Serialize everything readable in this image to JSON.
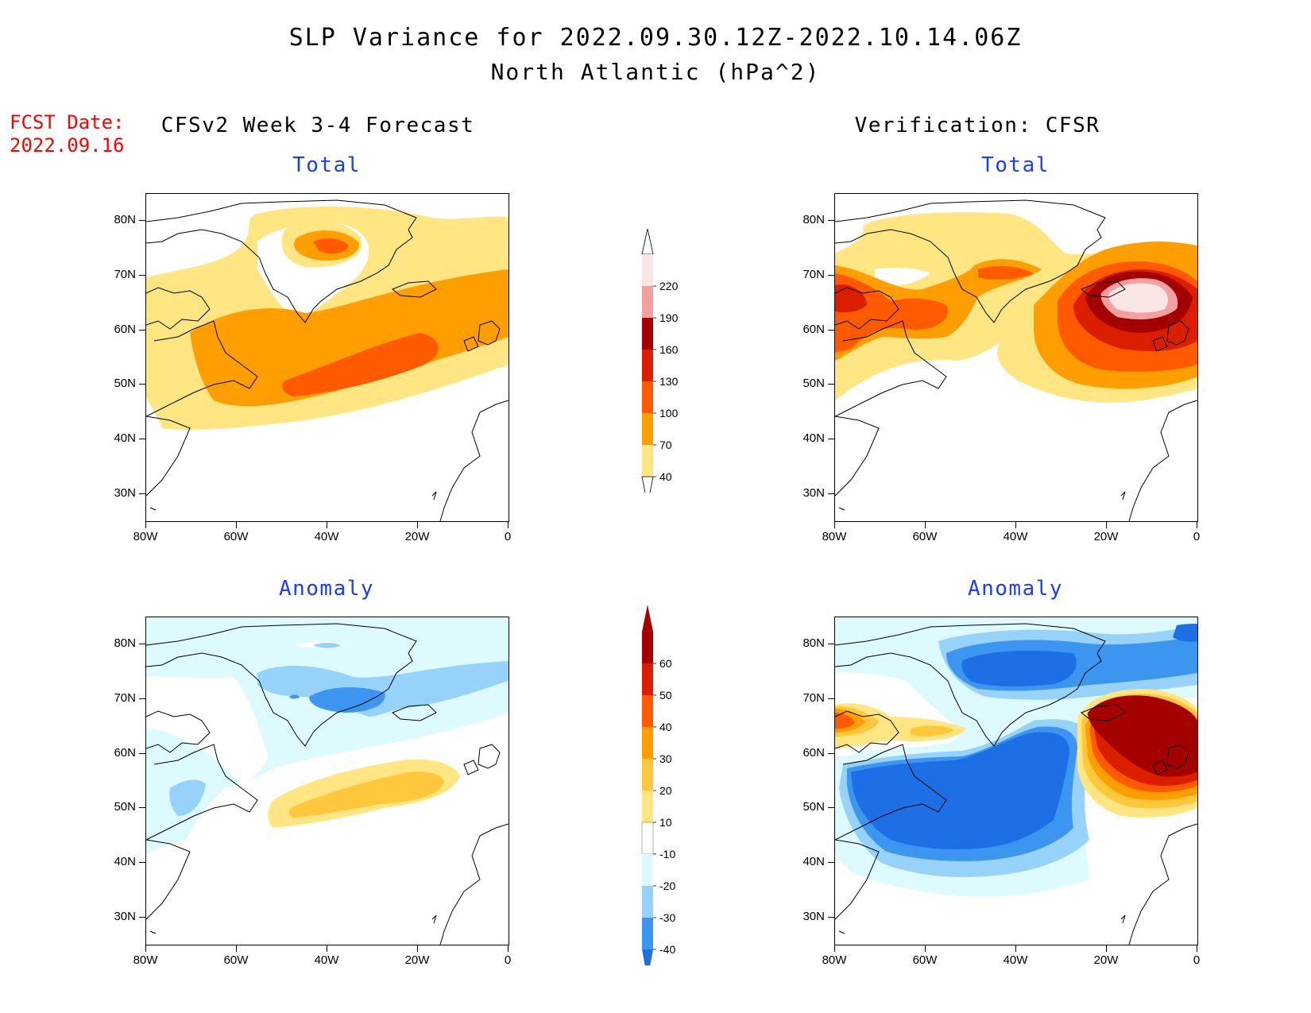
{
  "header": {
    "title": "SLP Variance for 2022.09.30.12Z-2022.10.14.06Z",
    "subtitle": "North Atlantic (hPa^2)"
  },
  "fcst": {
    "label": "FCST Date:",
    "date": "2022.09.16"
  },
  "columns": {
    "left": "CFSv2 Week 3-4 Forecast",
    "right": "Verification: CFSR"
  },
  "panel_titles": {
    "forecast_total": "Total",
    "verif_total": "Total",
    "forecast_anomaly": "Anomaly",
    "verif_anomaly": "Anomaly"
  },
  "axes": {
    "lat_labels": [
      "80N",
      "70N",
      "60N",
      "50N",
      "40N",
      "30N"
    ],
    "lon_labels": [
      "80W",
      "60W",
      "40W",
      "20W",
      "0"
    ]
  },
  "colorbars": {
    "total": {
      "labels": [
        "220",
        "190",
        "160",
        "130",
        "100",
        "70",
        "40"
      ],
      "colors": [
        "#fbe6e6",
        "#f2a0a0",
        "#a50000",
        "#dc1e00",
        "#ff5a00",
        "#ff9e00",
        "#ffe682"
      ]
    },
    "anomaly": {
      "labels": [
        "60",
        "50",
        "40",
        "30",
        "20",
        "10",
        "-10",
        "-20",
        "-30",
        "-40"
      ],
      "colors": [
        "#a50000",
        "#dc1e00",
        "#ff5a00",
        "#ff9e00",
        "#ffc83c",
        "#ffe682",
        "#ffffff",
        "#dcfaff",
        "#96d2fa",
        "#3c96f0",
        "#1e6ee6"
      ]
    }
  },
  "chart_data": {
    "type": "heatmap",
    "title": "SLP Variance for 2022.09.30.12Z-2022.10.14.06Z",
    "subtitle": "North Atlantic (hPa^2)",
    "region": {
      "lon": [
        -80,
        0
      ],
      "lat": [
        25,
        85
      ]
    },
    "panels": [
      {
        "name": "CFSv2 Week 3-4 Forecast Total",
        "levels": [
          40,
          70,
          100,
          130,
          160,
          190,
          220
        ],
        "features": [
          "max ~100-130 near 75N 40W",
          "band 70-100 from 55N 70W to 60N 0",
          "max 100-130 near 50N 30W"
        ]
      },
      {
        "name": "Verification: CFSR Total",
        "levels": [
          40,
          70,
          100,
          130,
          160,
          190,
          220
        ],
        "features": [
          "max >220 near 65N 12W",
          "100-130 near 62N 75W"
        ]
      },
      {
        "name": "CFSv2 Week 3-4 Forecast Anomaly",
        "levels": [
          -40,
          -30,
          -20,
          -10,
          10,
          20,
          30,
          40,
          50,
          60
        ],
        "features": [
          "min -30 to -40 near 71N 40W",
          "max 20-30 near 50N 30W"
        ]
      },
      {
        "name": "Verification: CFSR Anomaly",
        "levels": [
          -40,
          -30,
          -20,
          -10,
          10,
          20,
          30,
          40,
          50,
          60
        ],
        "features": [
          "min < -40 over 45-60N 75-25W",
          "max >60 near 62N 10W",
          "min -30 to -40 near 75N 35W"
        ]
      }
    ]
  }
}
